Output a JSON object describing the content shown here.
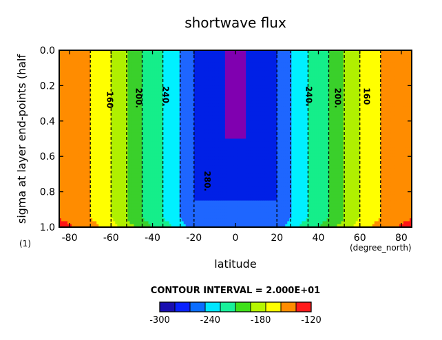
{
  "chart_data": {
    "type": "heatmap",
    "title": "shortwave flux",
    "xlabel": "latitude",
    "x_units": "(degree_north)",
    "ylabel": "sigma at layer end-points (half",
    "y_units": "(1)",
    "xlim": [
      -85,
      85
    ],
    "ylim": [
      1.0,
      0.0
    ],
    "x_ticks": [
      -80,
      -60,
      -40,
      -20,
      0,
      20,
      40,
      60,
      80
    ],
    "y_ticks": [
      0.0,
      0.2,
      0.4,
      0.6,
      0.8,
      1.0
    ],
    "x_tick_labels": [
      "-80",
      "-60",
      "-40",
      "-20",
      "0",
      "20",
      "40",
      "60",
      "80"
    ],
    "y_tick_labels": [
      "0.0",
      "0.2",
      "0.4",
      "0.6",
      "0.8",
      "1.0"
    ],
    "contour_interval_text": "CONTOUR INTERVAL = 2.000E+01",
    "contour_interval": 20,
    "levels": [
      -300,
      -280,
      -260,
      -240,
      -220,
      -200,
      -180,
      -160,
      -140,
      -120
    ],
    "colorbar_ticks": [
      "-300",
      "-240",
      "-180",
      "-120"
    ],
    "colorbar_colors": [
      "#1a0fb0",
      "#0a22ff",
      "#0a6dff",
      "#00e6ff",
      "#18f09a",
      "#3fe01a",
      "#b5f500",
      "#ffff00",
      "#ff8c00",
      "#ff1a1a"
    ],
    "band_colors": {
      "<-300": "#8000b0",
      "-300:-280": "#0020e6",
      "-280:-260": "#1e66ff",
      "-260:-240": "#00f0ff",
      "-240:-220": "#15ee8a",
      "-220:-200": "#3ad02b",
      "-200:-180": "#b0f000",
      "-180:-160": "#ffff00",
      "-160:-140": "#ff8c00",
      "-140:-120": "#ff1414",
      ">-120": "#ff9a9a"
    },
    "contour_labels": [
      {
        "text": "160",
        "lat": -62,
        "sigma": 0.28
      },
      {
        "text": "200.",
        "lat": -48,
        "sigma": 0.27
      },
      {
        "text": "240.",
        "lat": -35,
        "sigma": 0.26
      },
      {
        "text": "280.",
        "lat": -15,
        "sigma": 0.74
      },
      {
        "text": "240.",
        "lat": 34,
        "sigma": 0.26
      },
      {
        "text": "200.",
        "lat": 48,
        "sigma": 0.27
      },
      {
        "text": "160",
        "lat": 62,
        "sigma": 0.26
      }
    ],
    "approx_surface_values": [
      {
        "lat": -85,
        "value": -140
      },
      {
        "lat": -70,
        "value": -160
      },
      {
        "lat": -60,
        "value": -180
      },
      {
        "lat": -45,
        "value": -220
      },
      {
        "lat": -30,
        "value": -250
      },
      {
        "lat": -20,
        "value": -280
      },
      {
        "lat": 0,
        "value": -300
      },
      {
        "lat": 20,
        "value": -280
      },
      {
        "lat": 30,
        "value": -250
      },
      {
        "lat": 45,
        "value": -220
      },
      {
        "lat": 60,
        "value": -180
      },
      {
        "lat": 70,
        "value": -160
      },
      {
        "lat": 85,
        "value": -140
      }
    ]
  }
}
